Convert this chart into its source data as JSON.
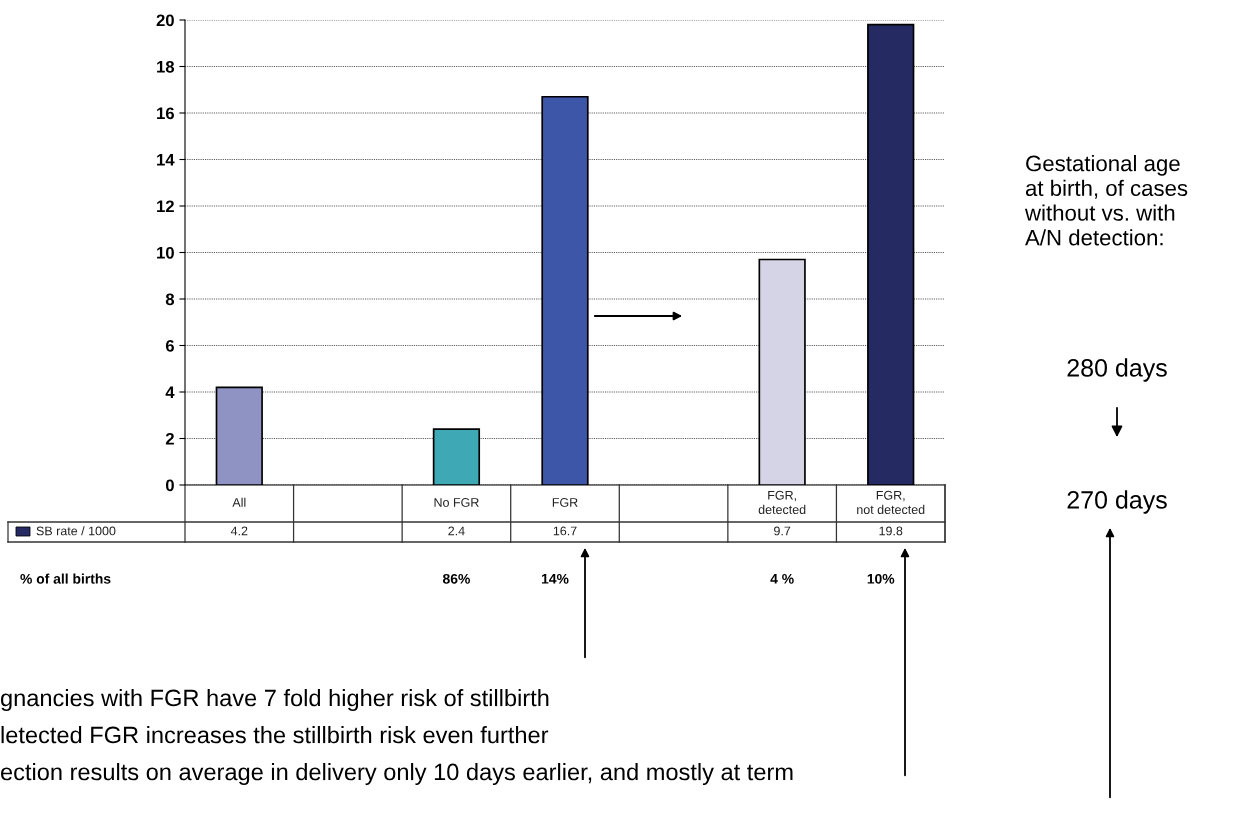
{
  "chart_data": {
    "type": "bar",
    "categories": [
      "All",
      null,
      "No FGR",
      "FGR",
      null,
      "FGR, detected",
      "FGR, not detected"
    ],
    "series": [
      {
        "name": "SB rate / 1000",
        "values": [
          4.2,
          null,
          2.4,
          16.7,
          null,
          9.7,
          19.8
        ],
        "colors": [
          "#8f93c4",
          "#8f93c4",
          "#3fa8b5",
          "#3e56a8",
          "#3e56a8",
          "#d4d4e6",
          "#262a63"
        ],
        "color": "#262a63"
      }
    ],
    "ylim": [
      0,
      20
    ],
    "yticks": [
      0,
      2,
      4,
      6,
      8,
      10,
      12,
      14,
      16,
      18,
      20
    ],
    "grid": "y",
    "data_labels": true,
    "legend": "bottom left",
    "annotations": [
      "% of all births",
      "86%",
      "14%",
      "4 %",
      "10%",
      "Gestational age\nat birth, of cases\nwithout vs. with\nA/N detection:",
      "280 days",
      "270 days",
      "gnancies with FGR have 7 fold higher risk of stillbirth",
      "letected FGR increases the stillbirth risk even further",
      "ection results on average in delivery only 10 days earlier, and mostly at term"
    ]
  }
}
